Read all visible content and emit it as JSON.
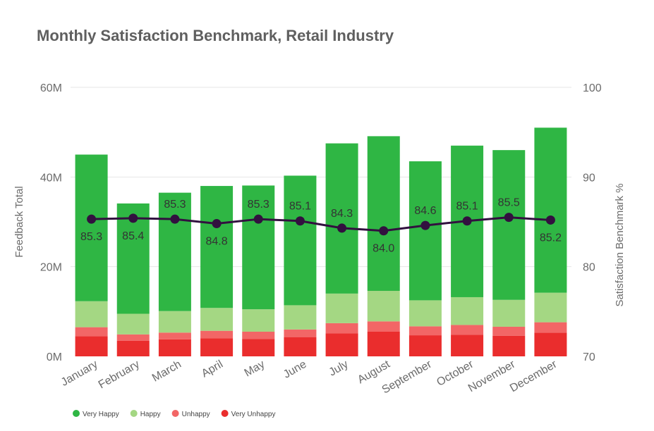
{
  "chart_data": {
    "type": "bar",
    "title": "Monthly Satisfaction Benchmark, Retail Industry",
    "categories": [
      "January",
      "February",
      "March",
      "April",
      "May",
      "June",
      "July",
      "August",
      "September",
      "October",
      "November",
      "December"
    ],
    "series": [
      {
        "name": "Very Unhappy",
        "color": "#ea2d2d",
        "values": [
          4.5,
          3.5,
          3.8,
          4.0,
          3.9,
          4.3,
          5.1,
          5.5,
          4.7,
          4.8,
          4.6,
          5.3
        ]
      },
      {
        "name": "Unhappy",
        "color": "#f26666",
        "values": [
          2.0,
          1.4,
          1.5,
          1.7,
          1.6,
          1.7,
          2.3,
          2.3,
          2.0,
          2.2,
          2.0,
          2.3
        ]
      },
      {
        "name": "Happy",
        "color": "#a4d783",
        "values": [
          5.8,
          4.6,
          4.8,
          5.1,
          5.0,
          5.4,
          6.6,
          6.8,
          5.8,
          6.2,
          6.0,
          6.6
        ]
      },
      {
        "name": "Very Happy",
        "color": "#2fb644",
        "values": [
          32.7,
          24.6,
          26.4,
          27.2,
          27.6,
          28.9,
          33.5,
          34.5,
          31.0,
          33.8,
          33.4,
          36.8
        ]
      }
    ],
    "line_series": {
      "name": "Satisfaction Benchmark %",
      "color": "#32103f",
      "values": [
        85.3,
        85.4,
        85.3,
        84.8,
        85.3,
        85.1,
        84.3,
        84.0,
        84.6,
        85.1,
        85.5,
        85.2
      ],
      "labels": [
        "85.3",
        "85.4",
        "85.3",
        "84.8",
        "85.3",
        "85.1",
        "84.3",
        "84.0",
        "84.6",
        "85.1",
        "85.5",
        "85.2"
      ],
      "label_positions": [
        "below",
        "below",
        "above",
        "below",
        "above",
        "above",
        "above",
        "below",
        "above",
        "above",
        "above",
        "below"
      ]
    },
    "ylabel": "Feedback Total",
    "ylim": [
      0,
      60
    ],
    "yticks": [
      0,
      20,
      40,
      60
    ],
    "ytick_labels": [
      "0M",
      "20M",
      "40M",
      "60M"
    ],
    "y2label": "Satisfaction Benchmark %",
    "y2lim": [
      70,
      100
    ],
    "y2ticks": [
      70,
      80,
      90,
      100
    ],
    "y2tick_labels": [
      "70",
      "80",
      "90",
      "100"
    ],
    "legend": [
      "Very Happy",
      "Happy",
      "Unhappy",
      "Very Unhappy"
    ],
    "legend_colors": [
      "#2fb644",
      "#a4d783",
      "#f26666",
      "#ea2d2d"
    ],
    "legend_position": "bottom-left",
    "grid": true
  }
}
